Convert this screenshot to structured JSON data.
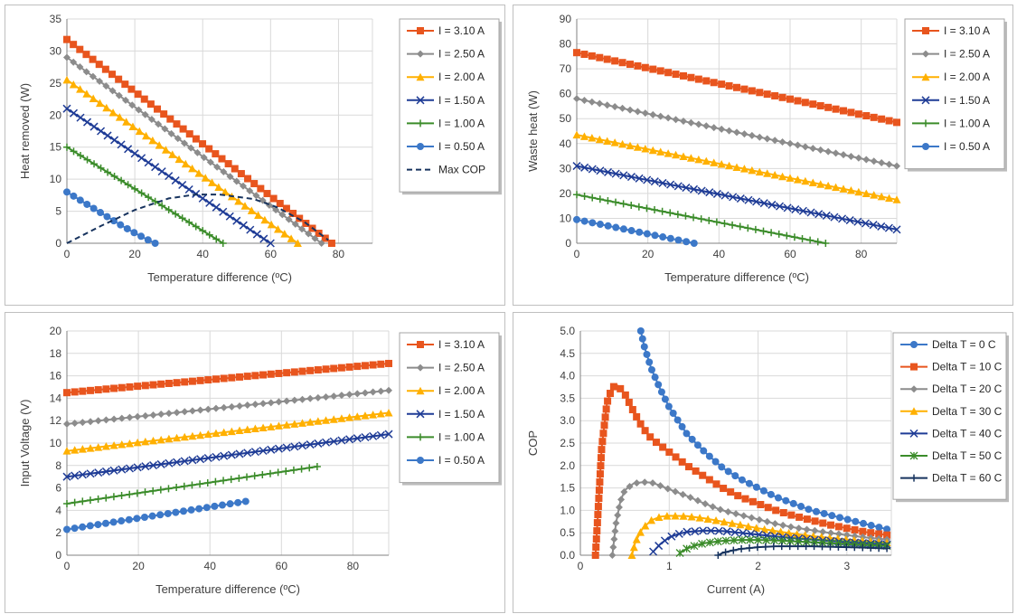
{
  "colors": {
    "orange": "#E8551E",
    "gray": "#8C8C8C",
    "yellow": "#FFB000",
    "navy": "#1F3C96",
    "green": "#3B8C2A",
    "blue": "#3C78C8",
    "darknavy": "#17335E",
    "grid": "#D9D9D9"
  },
  "chart_data": [
    {
      "type": "line",
      "xlabel": "Temperature difference (ºC)",
      "ylabel": "Heat removed (W)",
      "xlim": [
        0,
        90
      ],
      "ylim": [
        0,
        35
      ],
      "xticks": [
        0,
        20,
        40,
        60,
        80
      ],
      "yticks": [
        0,
        5,
        10,
        15,
        20,
        25,
        30,
        35
      ],
      "grid": true,
      "legend_position": "right",
      "series": [
        {
          "name": "I = 3.10 A",
          "color": "orange",
          "marker": "square",
          "x": [
            0,
            78
          ],
          "y": [
            31.8,
            0
          ]
        },
        {
          "name": "I = 2.50 A",
          "color": "gray",
          "marker": "diamond",
          "x": [
            0,
            75
          ],
          "y": [
            29.0,
            0
          ]
        },
        {
          "name": "I = 2.00 A",
          "color": "yellow",
          "marker": "triangle",
          "x": [
            0,
            68
          ],
          "y": [
            25.5,
            0
          ]
        },
        {
          "name": "I = 1.50 A",
          "color": "navy",
          "marker": "x",
          "x": [
            0,
            60
          ],
          "y": [
            21.0,
            0
          ]
        },
        {
          "name": "I = 1.00 A",
          "color": "green",
          "marker": "plus",
          "x": [
            0,
            46
          ],
          "y": [
            15.0,
            0
          ]
        },
        {
          "name": "I = 0.50 A",
          "color": "blue",
          "marker": "circle",
          "x": [
            0,
            4,
            8,
            12,
            16,
            20,
            24,
            26
          ],
          "y": [
            8.0,
            6.7,
            5.4,
            4.1,
            2.8,
            1.6,
            0.5,
            0
          ]
        },
        {
          "name": "Max COP",
          "color": "darknavy",
          "marker": "dash",
          "x": [
            0,
            10,
            20,
            30,
            38,
            45,
            55,
            62,
            70,
            77
          ],
          "y": [
            0,
            2.7,
            5.2,
            7.0,
            7.6,
            7.6,
            6.9,
            5.6,
            3.3,
            0.5
          ]
        }
      ]
    },
    {
      "type": "line",
      "xlabel": "Temperature difference (ºC)",
      "ylabel": "Waste heat (W)",
      "xlim": [
        0,
        90
      ],
      "ylim": [
        0,
        90
      ],
      "xticks": [
        0,
        20,
        40,
        60,
        80
      ],
      "yticks": [
        0,
        10,
        20,
        30,
        40,
        50,
        60,
        70,
        80,
        90
      ],
      "grid": true,
      "legend_position": "right",
      "series": [
        {
          "name": "I = 3.10 A",
          "color": "orange",
          "marker": "square",
          "x": [
            0,
            90
          ],
          "y": [
            76.5,
            48.5
          ]
        },
        {
          "name": "I = 2.50 A",
          "color": "gray",
          "marker": "diamond",
          "x": [
            0,
            90
          ],
          "y": [
            58.0,
            31.0
          ]
        },
        {
          "name": "I = 2.00 A",
          "color": "yellow",
          "marker": "triangle",
          "x": [
            0,
            90
          ],
          "y": [
            43.5,
            17.5
          ]
        },
        {
          "name": "I = 1.50 A",
          "color": "navy",
          "marker": "x",
          "x": [
            0,
            90
          ],
          "y": [
            31.0,
            5.5
          ]
        },
        {
          "name": "I = 1.00 A",
          "color": "green",
          "marker": "plus",
          "x": [
            0,
            70
          ],
          "y": [
            19.5,
            0
          ]
        },
        {
          "name": "I = 0.50 A",
          "color": "blue",
          "marker": "circle",
          "x": [
            0,
            33
          ],
          "y": [
            9.5,
            0
          ]
        }
      ]
    },
    {
      "type": "line",
      "xlabel": "Temperature difference (ºC)",
      "ylabel": "Input Voltage (V)",
      "xlim": [
        0,
        90
      ],
      "ylim": [
        0,
        20
      ],
      "xticks": [
        0,
        20,
        40,
        60,
        80
      ],
      "yticks": [
        0,
        2,
        4,
        6,
        8,
        10,
        12,
        14,
        16,
        18,
        20
      ],
      "grid": true,
      "legend_position": "right",
      "series": [
        {
          "name": "I = 3.10 A",
          "color": "orange",
          "marker": "square",
          "x": [
            0,
            90
          ],
          "y": [
            14.5,
            17.1
          ]
        },
        {
          "name": "I = 2.50 A",
          "color": "gray",
          "marker": "diamond",
          "x": [
            0,
            90
          ],
          "y": [
            11.7,
            14.7
          ]
        },
        {
          "name": "I = 2.00 A",
          "color": "yellow",
          "marker": "triangle",
          "x": [
            0,
            90
          ],
          "y": [
            9.3,
            12.7
          ]
        },
        {
          "name": "I = 1.50 A",
          "color": "navy",
          "marker": "x",
          "x": [
            0,
            90
          ],
          "y": [
            7.0,
            10.8
          ]
        },
        {
          "name": "I = 1.00 A",
          "color": "green",
          "marker": "plus",
          "x": [
            0,
            70
          ],
          "y": [
            4.6,
            7.9
          ]
        },
        {
          "name": "I = 0.50 A",
          "color": "blue",
          "marker": "circle",
          "x": [
            0,
            50
          ],
          "y": [
            2.3,
            4.8
          ]
        }
      ]
    },
    {
      "type": "line",
      "xlabel": "Current (A)",
      "ylabel": "COP",
      "xlim": [
        0,
        3.5
      ],
      "ylim": [
        0,
        5
      ],
      "xticks": [
        0,
        1,
        2,
        3
      ],
      "yticks": [
        0.0,
        0.5,
        1.0,
        1.5,
        2.0,
        2.5,
        3.0,
        3.5,
        4.0,
        4.5,
        5.0
      ],
      "grid": true,
      "legend_position": "right",
      "series": [
        {
          "name": "Delta T = 0 C",
          "color": "blue",
          "marker": "circle",
          "x": [
            0.68,
            0.72,
            0.8,
            0.9,
            1.0,
            1.2,
            1.4,
            1.6,
            1.8,
            2.0,
            2.2,
            2.4,
            2.6,
            2.8,
            3.0,
            3.2,
            3.45
          ],
          "y": [
            5.0,
            4.65,
            4.15,
            3.7,
            3.3,
            2.7,
            2.3,
            1.95,
            1.7,
            1.5,
            1.3,
            1.15,
            1.0,
            0.9,
            0.8,
            0.7,
            0.58
          ]
        },
        {
          "name": "Delta T = 10 C",
          "color": "orange",
          "marker": "square",
          "x": [
            0.17,
            0.2,
            0.24,
            0.3,
            0.36,
            0.42,
            0.5,
            0.6,
            0.7,
            0.8,
            1.0,
            1.2,
            1.4,
            1.6,
            1.8,
            2.0,
            2.2,
            2.4,
            2.6,
            2.8,
            3.0,
            3.2,
            3.45
          ],
          "y": [
            0,
            1.0,
            2.4,
            3.4,
            3.75,
            3.78,
            3.6,
            3.2,
            2.85,
            2.6,
            2.3,
            2.0,
            1.75,
            1.5,
            1.3,
            1.15,
            1.0,
            0.88,
            0.78,
            0.68,
            0.6,
            0.52,
            0.45
          ]
        },
        {
          "name": "Delta T = 20 C",
          "color": "gray",
          "marker": "diamond",
          "x": [
            0.36,
            0.4,
            0.45,
            0.5,
            0.6,
            0.7,
            0.8,
            0.9,
            1.0,
            1.2,
            1.4,
            1.6,
            1.8,
            2.0,
            2.2,
            2.4,
            2.6,
            2.8,
            3.0,
            3.2,
            3.45
          ],
          "y": [
            0,
            0.7,
            1.2,
            1.45,
            1.6,
            1.63,
            1.62,
            1.55,
            1.47,
            1.32,
            1.15,
            1.0,
            0.9,
            0.8,
            0.7,
            0.62,
            0.56,
            0.5,
            0.45,
            0.4,
            0.35
          ]
        },
        {
          "name": "Delta T = 30 C",
          "color": "yellow",
          "marker": "triangle",
          "x": [
            0.58,
            0.62,
            0.7,
            0.8,
            0.9,
            1.0,
            1.2,
            1.4,
            1.6,
            1.8,
            2.0,
            2.2,
            2.4,
            2.6,
            2.8,
            3.0,
            3.2,
            3.45
          ],
          "y": [
            0,
            0.3,
            0.6,
            0.78,
            0.86,
            0.88,
            0.87,
            0.82,
            0.75,
            0.68,
            0.6,
            0.54,
            0.48,
            0.43,
            0.39,
            0.35,
            0.32,
            0.28
          ]
        },
        {
          "name": "Delta T = 40 C",
          "color": "navy",
          "marker": "x",
          "x": [
            0.82,
            0.9,
            1.0,
            1.1,
            1.2,
            1.4,
            1.6,
            1.8,
            2.0,
            2.2,
            2.4,
            2.6,
            2.8,
            3.0,
            3.2,
            3.45
          ],
          "y": [
            0.08,
            0.25,
            0.4,
            0.47,
            0.52,
            0.55,
            0.54,
            0.5,
            0.46,
            0.42,
            0.38,
            0.35,
            0.32,
            0.29,
            0.27,
            0.24
          ]
        },
        {
          "name": "Delta T = 50 C",
          "color": "green",
          "marker": "star",
          "x": [
            1.12,
            1.2,
            1.3,
            1.4,
            1.6,
            1.8,
            2.0,
            2.2,
            2.4,
            2.6,
            2.8,
            3.0,
            3.2,
            3.45
          ],
          "y": [
            0.05,
            0.15,
            0.22,
            0.27,
            0.32,
            0.34,
            0.34,
            0.33,
            0.31,
            0.29,
            0.27,
            0.25,
            0.23,
            0.21
          ]
        },
        {
          "name": "Delta T = 60 C",
          "color": "darknavy",
          "marker": "plus",
          "x": [
            1.55,
            1.6,
            1.7,
            1.8,
            2.0,
            2.2,
            2.4,
            2.6,
            2.8,
            3.0,
            3.2,
            3.45
          ],
          "y": [
            0.0,
            0.05,
            0.1,
            0.14,
            0.18,
            0.2,
            0.2,
            0.2,
            0.19,
            0.18,
            0.17,
            0.15
          ]
        }
      ]
    }
  ]
}
